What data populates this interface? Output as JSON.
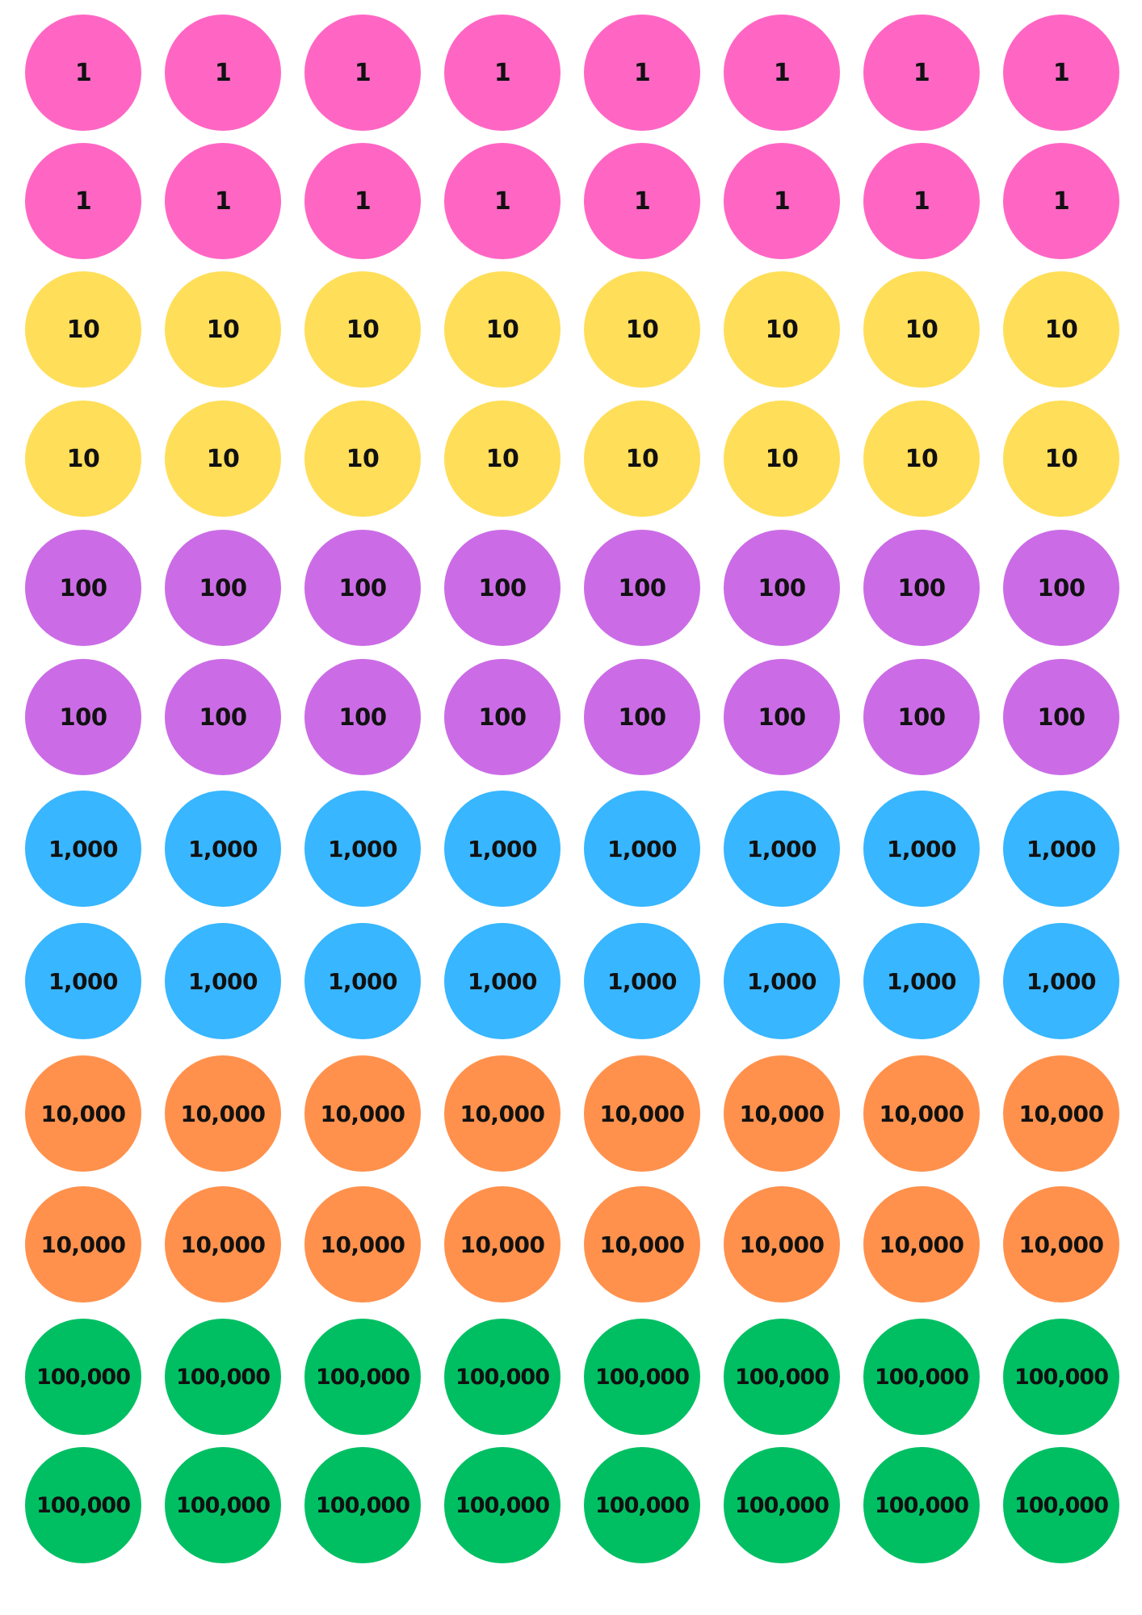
{
  "counter_sheet": {
    "rows": [
      {
        "label": "1",
        "color": "#FF66C4",
        "count": 8
      },
      {
        "label": "1",
        "color": "#FF66C4",
        "count": 8
      },
      {
        "label": "10",
        "color": "#FFDE59",
        "count": 8
      },
      {
        "label": "10",
        "color": "#FFDE59",
        "count": 8
      },
      {
        "label": "100",
        "color": "#CB6CE6",
        "count": 8
      },
      {
        "label": "100",
        "color": "#CB6CE6",
        "count": 8
      },
      {
        "label": "1,000",
        "color": "#38B6FF",
        "count": 8
      },
      {
        "label": "1,000",
        "color": "#38B6FF",
        "count": 8
      },
      {
        "label": "10,000",
        "color": "#FF914D",
        "count": 8
      },
      {
        "label": "10,000",
        "color": "#FF914D",
        "count": 8
      },
      {
        "label": "100,000",
        "color": "#00BF63",
        "count": 8
      },
      {
        "label": "100,000",
        "color": "#00BF63",
        "count": 8
      }
    ]
  }
}
